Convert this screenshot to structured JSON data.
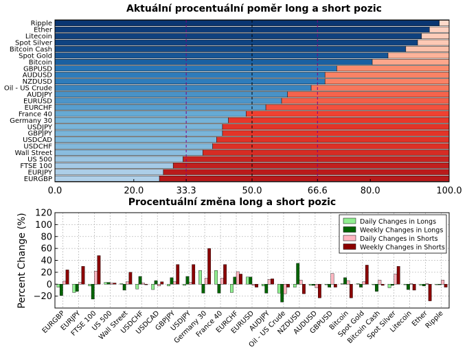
{
  "chart_data": [
    {
      "type": "bar",
      "orientation": "horizontal-stacked",
      "title": "Aktuální procentuální poměr long a short pozic",
      "categories": [
        "EURGBP",
        "EURJPY",
        "FTSE 100",
        "US 500",
        "Wall Street",
        "USDCHF",
        "USDCAD",
        "GBPJPY",
        "USDJPY",
        "Germany 30",
        "France 40",
        "EURCHF",
        "EURUSD",
        "AUDJPY",
        "Oil - US Crude",
        "NZDUSD",
        "AUDUSD",
        "GBPUSD",
        "Bitcoin",
        "Spot Gold",
        "Bitcoin Cash",
        "Spot Silver",
        "Litecoin",
        "Ether",
        "Ripple"
      ],
      "series": [
        {
          "name": "Long",
          "values": [
            26.5,
            27.5,
            30,
            32.5,
            37.5,
            40,
            41,
            42.5,
            42.5,
            44,
            48.5,
            53.5,
            57.5,
            59,
            65,
            68.5,
            68.5,
            71.5,
            80.5,
            84.5,
            89,
            92,
            93,
            95,
            97.5
          ]
        },
        {
          "name": "Short",
          "values": [
            73.5,
            72.5,
            70,
            67.5,
            62.5,
            60,
            59,
            57.5,
            57.5,
            56,
            51.5,
            46.5,
            42.5,
            41,
            35,
            31.5,
            31.5,
            28.5,
            19.5,
            15.5,
            11,
            8,
            7,
            5,
            2.5
          ]
        }
      ],
      "xlim": [
        0,
        100
      ],
      "xticks": [
        "0.0",
        "20.0",
        "33.3",
        "50.0",
        "66.6",
        "80.0",
        "100.0"
      ],
      "reference_lines": [
        33.3,
        50,
        66.6
      ],
      "colors": {
        "long": "Blues",
        "short": "Reds",
        "reference": "#800080"
      }
    },
    {
      "type": "bar",
      "title": "Procentuální změna long a short pozic",
      "ylabel": "Percent Change (%)",
      "ylim": [
        -40,
        120
      ],
      "yticks": [
        "120",
        "100",
        "80",
        "60",
        "40",
        "20",
        "0",
        "−20"
      ],
      "grid": true,
      "legend_position": "top-right",
      "categories": [
        "EURGBP",
        "EURJPY",
        "FTSE 100",
        "US 500",
        "Wall Street",
        "USDCHF",
        "USDCAD",
        "GBPJPY",
        "USDJPY",
        "Germany 30",
        "France 40",
        "EURCHF",
        "EURUSD",
        "AUDJPY",
        "Oil - US Crude",
        "NZDUSD",
        "AUDUSD",
        "GBPUSD",
        "Bitcoin",
        "Spot Gold",
        "Bitcoin Cash",
        "Spot Silver",
        "Litecoin",
        "Ether",
        "Ripple"
      ],
      "series": [
        {
          "name": "Daily Changes in Longs",
          "color": "#90ee90",
          "values": [
            -5,
            -14,
            -3,
            3,
            1,
            -8,
            -9,
            -3,
            -2,
            23,
            23,
            -14,
            12,
            -3,
            -15,
            -5,
            -2,
            -1,
            1,
            1,
            -1,
            -6,
            -1,
            -2,
            -1
          ]
        },
        {
          "name": "Weekly Changes in Longs",
          "color": "#006400",
          "values": [
            -19,
            -12,
            -25,
            3,
            -10,
            13,
            6,
            11,
            13,
            -15,
            -15,
            12,
            12,
            -15,
            -30,
            35,
            -2,
            -5,
            11,
            -5,
            -12,
            -2,
            -9,
            -3,
            -1
          ]
        },
        {
          "name": "Daily Changes in Shorts",
          "color": "#ffb6c1",
          "values": [
            5,
            3,
            22,
            2,
            4,
            2,
            -3,
            4,
            3,
            10,
            10,
            21,
            -2,
            8,
            -16,
            7,
            -6,
            18,
            6,
            4,
            7,
            17,
            1,
            1,
            7
          ]
        },
        {
          "name": "Weekly Changes in Shorts",
          "color": "#8b0000",
          "values": [
            24,
            30,
            48,
            2,
            20,
            -1,
            4,
            33,
            33,
            60,
            33,
            17,
            -5,
            9,
            -5,
            -16,
            -23,
            -5,
            -23,
            32,
            -2,
            30,
            -10,
            -28,
            -5
          ]
        }
      ]
    }
  ]
}
